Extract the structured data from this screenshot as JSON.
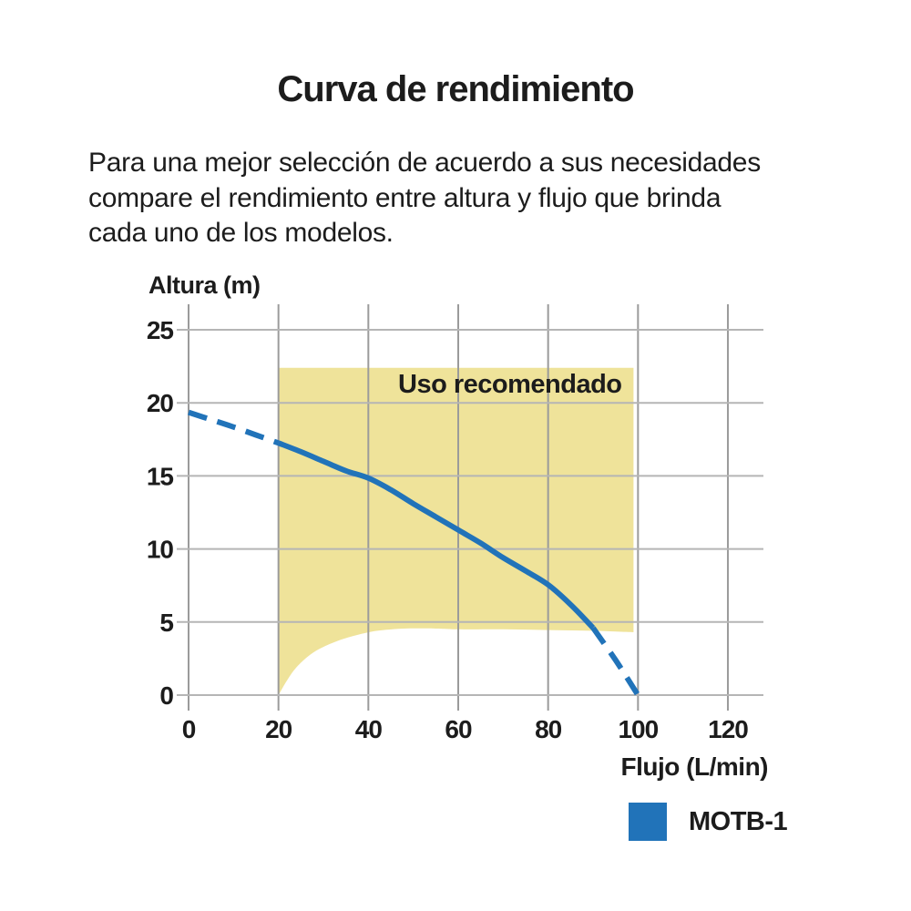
{
  "page": {
    "title": "Curva de rendimiento",
    "intro_lines": [
      "Para una mejor selección de acuerdo a sus necesidades",
      "compare el rendimiento entre altura y flujo que brinda",
      "cada uno de los modelos."
    ]
  },
  "chart_data": {
    "type": "line",
    "title": "Curva de rendimiento",
    "xlabel": "Flujo (L/min)",
    "ylabel": "Altura (m)",
    "x_ticks": [
      0,
      20,
      40,
      60,
      80,
      100,
      120
    ],
    "y_ticks": [
      0,
      5,
      10,
      15,
      20,
      25
    ],
    "xlim": [
      0,
      128
    ],
    "ylim": [
      0,
      26.8
    ],
    "grid": true,
    "colors": {
      "curve_blue": "#2173b9",
      "region_yellow": "#efe39a",
      "grid_vertical": "#9b9b9b",
      "grid_horizontal": "#b5b5b5",
      "text": "#1c1c1c"
    },
    "recommended_region": {
      "label": "Uso recomendado",
      "color": "#efe39a",
      "x_range": [
        20,
        99
      ],
      "top": 22.4,
      "bottom_boundary": [
        [
          20,
          0
        ],
        [
          22,
          1.05
        ],
        [
          24,
          1.9
        ],
        [
          27,
          2.75
        ],
        [
          30,
          3.3
        ],
        [
          34,
          3.8
        ],
        [
          38,
          4.15
        ],
        [
          42,
          4.4
        ],
        [
          48,
          4.55
        ],
        [
          55,
          4.55
        ],
        [
          60,
          4.5
        ],
        [
          70,
          4.5
        ],
        [
          80,
          4.45
        ],
        [
          90,
          4.4
        ],
        [
          99,
          4.3
        ]
      ]
    },
    "series": [
      {
        "name": "MOTB-1",
        "color": "#2173b9",
        "segments": [
          {
            "style": "dashed",
            "points": [
              [
                0,
                19.35
              ],
              [
                5,
                18.85
              ],
              [
                10,
                18.35
              ],
              [
                15,
                17.8
              ],
              [
                20,
                17.25
              ]
            ]
          },
          {
            "style": "solid",
            "points": [
              [
                20,
                17.25
              ],
              [
                25,
                16.65
              ],
              [
                30,
                16.0
              ],
              [
                35,
                15.35
              ],
              [
                40,
                14.85
              ],
              [
                45,
                14.05
              ],
              [
                50,
                13.1
              ],
              [
                55,
                12.2
              ],
              [
                60,
                11.3
              ],
              [
                65,
                10.4
              ],
              [
                70,
                9.4
              ],
              [
                75,
                8.5
              ],
              [
                80,
                7.55
              ],
              [
                85,
                6.2
              ],
              [
                90,
                4.6
              ]
            ]
          },
          {
            "style": "dashed",
            "points": [
              [
                90,
                4.6
              ],
              [
                95,
                2.4
              ],
              [
                100,
                0
              ]
            ]
          }
        ]
      }
    ],
    "legend": {
      "position": "bottom-right",
      "entries": [
        {
          "label": "MOTB-1",
          "color": "#2173b9"
        }
      ]
    }
  }
}
